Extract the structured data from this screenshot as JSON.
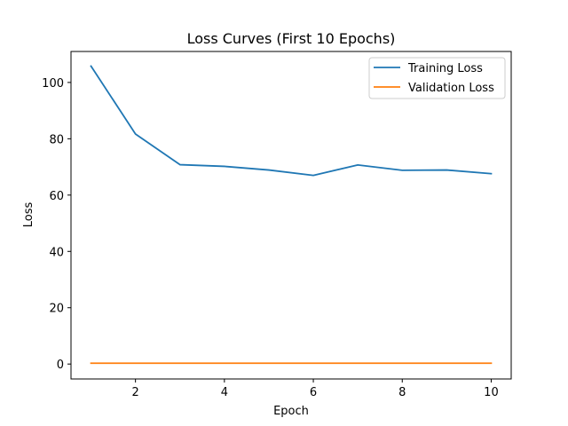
{
  "chart_data": {
    "type": "line",
    "title": "Loss Curves (First 10 Epochs)",
    "xlabel": "Epoch",
    "ylabel": "Loss",
    "x": [
      1,
      2,
      3,
      4,
      5,
      6,
      7,
      8,
      9,
      10
    ],
    "xlim": [
      0.55,
      10.45
    ],
    "ylim": [
      -5.3,
      111.0
    ],
    "xticks": [
      2,
      4,
      6,
      8,
      10
    ],
    "yticks": [
      0,
      20,
      40,
      60,
      80,
      100
    ],
    "grid": false,
    "legend_position": "top-right",
    "series": [
      {
        "name": "Training Loss",
        "color": "#1f77b4",
        "values": [
          105.8,
          81.7,
          70.8,
          70.2,
          68.9,
          67.0,
          70.7,
          68.8,
          68.9,
          67.6
        ]
      },
      {
        "name": "Validation Loss",
        "color": "#ff7f0e",
        "values": [
          0.3,
          0.3,
          0.3,
          0.3,
          0.3,
          0.3,
          0.3,
          0.3,
          0.3,
          0.3
        ]
      }
    ]
  }
}
